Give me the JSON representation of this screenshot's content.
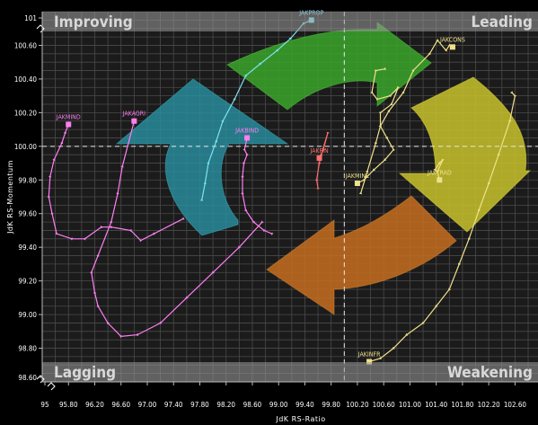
{
  "chart_data": {
    "type": "scatter",
    "xlabel": "JdK RS-Ratio",
    "ylabel": "JdK RS-Momentum",
    "xlim": [
      95.4,
      102.95
    ],
    "ylim": [
      98.6,
      100.8
    ],
    "x_ticks": [
      "95",
      "95.80",
      "96.20",
      "96.60",
      "97.00",
      "97.40",
      "97.80",
      "98.20",
      "98.60",
      "99.00",
      "99.40",
      "99.80",
      "100.20",
      "100.60",
      "101.00",
      "101.40",
      "101.80",
      "102.20",
      "102.60"
    ],
    "y_ticks": [
      "101",
      "100.60",
      "100.40",
      "100.20",
      "100.00",
      "99.80",
      "99.60",
      "99.40",
      "99.20",
      "99.00",
      "98.80",
      "98.60"
    ],
    "grid": true,
    "center": {
      "x": 100,
      "y": 100
    },
    "quadrants": {
      "top_left": "Improving",
      "top_right": "Leading",
      "bottom_left": "Lagging",
      "bottom_right": "Weakening"
    },
    "quadrant_colors": {
      "improving": "#2a8fa0",
      "leading": "#3aa52a",
      "weakening": "#c8c22a",
      "lagging": "#c56d1f"
    },
    "series": [
      {
        "name": "JAKPROP",
        "color": "#7fe3f2",
        "x": [
          97.83,
          97.88,
          97.93,
          98.05,
          98.15,
          98.33,
          98.5,
          98.72,
          98.98,
          99.18,
          99.38,
          99.5
        ],
        "y": [
          99.68,
          99.78,
          99.9,
          100.03,
          100.15,
          100.28,
          100.42,
          100.49,
          100.57,
          100.64,
          100.73,
          100.75
        ]
      },
      {
        "name": "JAKCONS",
        "color": "#f0e08a",
        "x": [
          100.25,
          100.35,
          100.48,
          100.55,
          100.68,
          100.9,
          101.05,
          101.3,
          101.42,
          101.55,
          101.6,
          101.65
        ],
        "y": [
          99.72,
          99.85,
          100.02,
          100.12,
          100.21,
          100.32,
          100.45,
          100.55,
          100.63,
          100.57,
          100.6,
          100.59
        ]
      },
      {
        "name": "JAKMIND",
        "color": "#ff7ff2",
        "x": [
          97.55,
          97.1,
          96.9,
          96.75,
          96.45,
          96.3,
          96.05,
          95.85,
          95.62,
          95.55,
          95.5,
          95.52,
          95.58,
          95.7,
          95.75,
          95.8
        ],
        "y": [
          99.57,
          99.48,
          99.44,
          99.5,
          99.52,
          99.52,
          99.45,
          99.45,
          99.48,
          99.6,
          99.7,
          99.82,
          99.92,
          100.02,
          100.08,
          100.13
        ]
      },
      {
        "name": "JAKAGRI",
        "color": "#ff7ff2",
        "x": [
          98.75,
          98.4,
          98.0,
          97.6,
          97.2,
          96.85,
          96.6,
          96.4,
          96.25,
          96.2,
          96.15,
          96.25,
          96.45,
          96.55,
          96.62,
          96.8
        ],
        "y": [
          99.55,
          99.4,
          99.25,
          99.1,
          98.95,
          98.88,
          98.87,
          98.95,
          99.05,
          99.13,
          99.25,
          99.35,
          99.55,
          99.72,
          99.88,
          100.15
        ]
      },
      {
        "name": "JAKBIND",
        "color": "#ff7ff2",
        "x": [
          98.9,
          98.78,
          98.62,
          98.5,
          98.45,
          98.45,
          98.47,
          98.52,
          98.48,
          98.52
        ],
        "y": [
          99.48,
          99.5,
          99.55,
          99.62,
          99.72,
          99.82,
          99.9,
          99.95,
          99.98,
          100.05
        ]
      },
      {
        "name": "JAKFIN",
        "color": "#ff7070",
        "x": [
          99.6,
          99.58,
          99.62,
          99.65,
          99.75,
          99.68,
          99.62
        ],
        "y": [
          99.75,
          99.8,
          99.9,
          99.95,
          100.08,
          99.98,
          99.93
        ]
      },
      {
        "name": "JAKMINE",
        "color": "#f0e08a",
        "x": [
          100.62,
          100.48,
          100.42,
          100.5,
          100.7,
          100.82,
          100.72,
          100.55,
          100.55,
          100.65,
          100.75,
          100.62,
          100.45,
          100.3,
          100.2
        ],
        "y": [
          100.46,
          100.45,
          100.32,
          100.28,
          100.3,
          100.35,
          100.25,
          100.2,
          100.12,
          100.05,
          99.98,
          99.92,
          99.86,
          99.8,
          99.78
        ]
      },
      {
        "name": "JAKTRAD",
        "color": "#f0e08a",
        "x": [
          101.38,
          101.45,
          101.5,
          101.42,
          101.45
        ],
        "y": [
          99.86,
          99.9,
          99.92,
          99.85,
          99.8
        ]
      },
      {
        "name": "JAKINFR",
        "color": "#f0e08a",
        "x": [
          102.55,
          102.6,
          102.52,
          102.35,
          102.2,
          102.05,
          101.9,
          101.75,
          101.6,
          101.4,
          101.2,
          100.95,
          100.75,
          100.55,
          100.38
        ],
        "y": [
          100.32,
          100.3,
          100.15,
          99.95,
          99.78,
          99.62,
          99.45,
          99.3,
          99.15,
          99.05,
          98.95,
          98.88,
          98.8,
          98.74,
          98.72
        ]
      }
    ]
  }
}
